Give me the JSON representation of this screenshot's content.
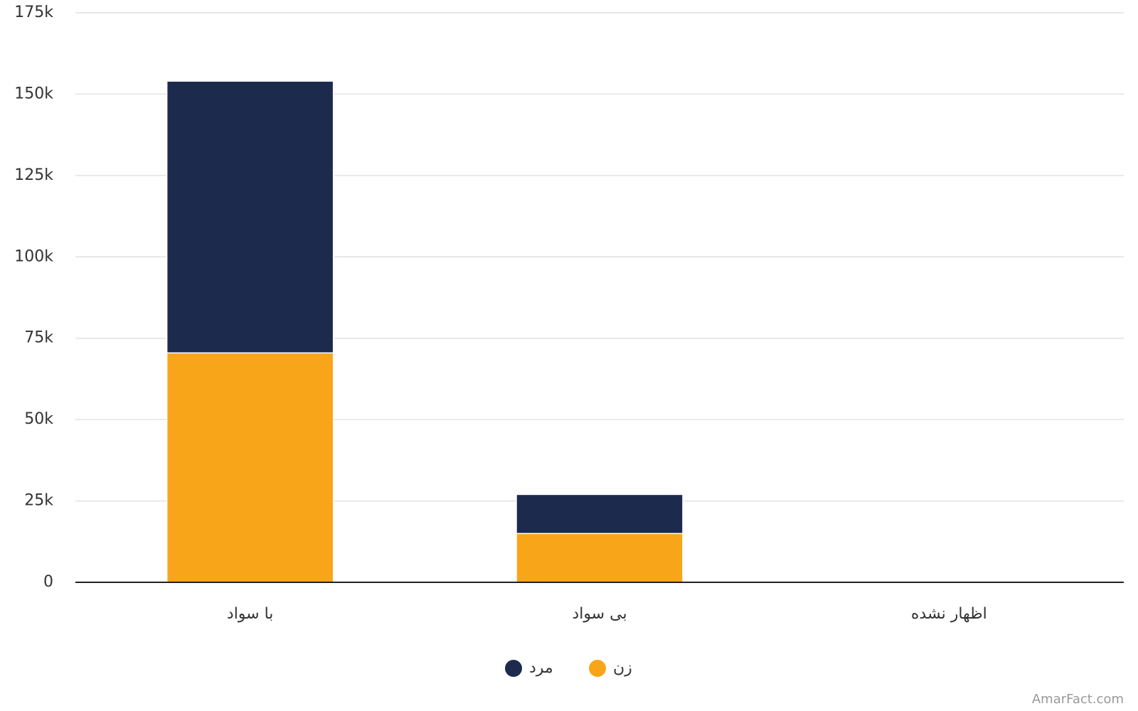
{
  "chart_data": {
    "type": "stacked_bar",
    "categories": [
      "با سواد",
      "بی سواد",
      "اظهار نشده"
    ],
    "series": [
      {
        "name": "زن",
        "color": "#f9a51a",
        "values": [
          70500,
          15000,
          0
        ]
      },
      {
        "name": "مرد",
        "color": "#1c2a4e",
        "values": [
          83500,
          12000,
          0
        ]
      }
    ],
    "ylim": [
      0,
      175000
    ],
    "yticks": [
      0,
      {
        "value": 25000,
        "label": "25k"
      },
      {
        "value": 50000,
        "label": "50k"
      },
      {
        "value": 75000,
        "label": "75k"
      },
      {
        "value": 100000,
        "label": "100k"
      },
      {
        "value": 125000,
        "label": "125k"
      },
      {
        "value": 150000,
        "label": "150k"
      },
      {
        "value": 175000,
        "label": "175k"
      }
    ],
    "grid": true,
    "legend": "bottom",
    "source": "AmarFact.com"
  }
}
